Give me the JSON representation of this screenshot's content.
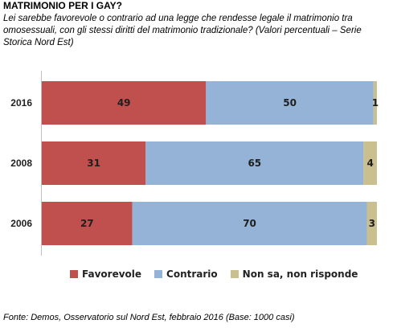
{
  "header": {
    "title": "MATRIMONIO PER I GAY?",
    "subtitle": "Lei sarebbe favorevole o contrario ad una legge che rendesse legale il matrimonio tra omosessuali, con gli stessi diritti del matrimonio tradizionale? (Valori percentuali – Serie Storica Nord Est)"
  },
  "footer": {
    "source": "Fonte: Demos, Osservatorio sul Nord Est, febbraio 2016 (Base: 1000 casi)"
  },
  "chart_data": {
    "type": "bar",
    "orientation": "horizontal",
    "stacked": true,
    "categories": [
      "2016",
      "2008",
      "2006"
    ],
    "series": [
      {
        "name": "Favorevole",
        "values": [
          49,
          31,
          27
        ],
        "color": "#c0504d"
      },
      {
        "name": "Contrario",
        "values": [
          50,
          65,
          70
        ],
        "color": "#95b3d7"
      },
      {
        "name": "Non sa, non risponde",
        "values": [
          1,
          4,
          3
        ],
        "color": "#c9bf8f"
      }
    ],
    "xlim": [
      0,
      100
    ],
    "grid": false,
    "legend": "bottom"
  }
}
